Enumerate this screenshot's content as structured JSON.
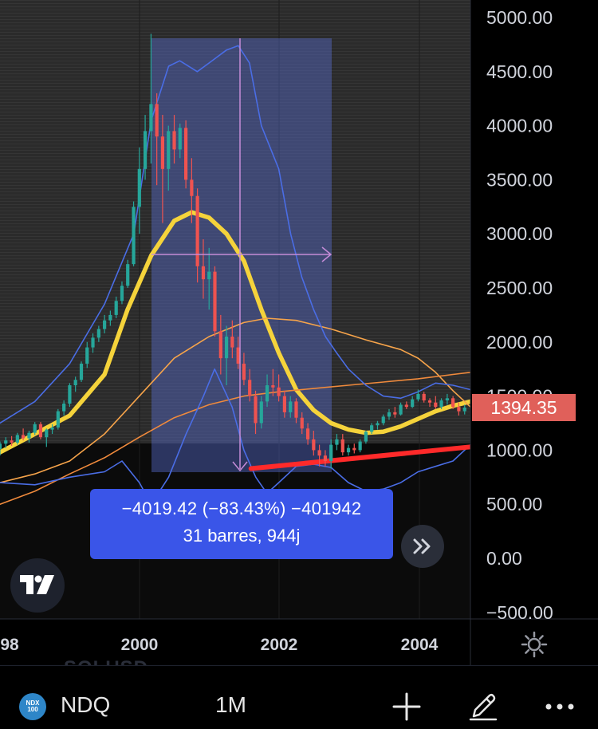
{
  "symbol": {
    "name": "NDQ",
    "badge_line1": "NDX",
    "badge_line2": "100"
  },
  "interval": "1M",
  "faded_label": "SOLUSD",
  "last_price_label": "1394.35",
  "measure": {
    "line1": "−4019.42 (−83.43%) −401942",
    "line2": "31 barres, 944j"
  },
  "colors": {
    "up": "#26a69a",
    "down": "#ef5350",
    "ma_yellow": "#f5d33b",
    "ma_orange": "#f7a44a",
    "ma_orange_dark": "#f08a3c",
    "bollinger": "#4a6de5",
    "support": "#ff2a2a",
    "measure_box": "#3a55e8",
    "price_tag": "#e0605a"
  },
  "icons": [
    "tradingview-logo-icon",
    "fast-forward-icon",
    "gear-icon",
    "plus-icon",
    "pen-icon",
    "more-icon"
  ],
  "chart_data": {
    "type": "candlestick",
    "y_ticks": [
      "5000.00",
      "4500.00",
      "4000.00",
      "3500.00",
      "3000.00",
      "2500.00",
      "2000.00",
      "1500.00",
      "1000.00",
      "500.00",
      "0.00",
      "−500.00"
    ],
    "x_ticks": [
      "98",
      "2000",
      "2002",
      "2004"
    ],
    "ylim": [
      -500,
      5000
    ],
    "xlim": [
      1998.0,
      2004.75
    ],
    "candles": [
      [
        1998.0,
        1010,
        1080,
        950,
        1060
      ],
      [
        1998.083,
        1060,
        1120,
        1020,
        1090
      ],
      [
        1998.167,
        1090,
        1130,
        1040,
        1070
      ],
      [
        1998.25,
        1070,
        1160,
        1050,
        1140
      ],
      [
        1998.333,
        1140,
        1200,
        1090,
        1110
      ],
      [
        1998.417,
        1110,
        1180,
        1070,
        1160
      ],
      [
        1998.5,
        1160,
        1260,
        1140,
        1240
      ],
      [
        1998.583,
        1240,
        1260,
        1100,
        1120
      ],
      [
        1998.667,
        1120,
        1200,
        1030,
        1190
      ],
      [
        1998.75,
        1190,
        1240,
        1150,
        1210
      ],
      [
        1998.833,
        1210,
        1380,
        1190,
        1360
      ],
      [
        1998.917,
        1360,
        1460,
        1320,
        1430
      ],
      [
        1999.0,
        1430,
        1620,
        1400,
        1600
      ],
      [
        1999.083,
        1600,
        1680,
        1540,
        1650
      ],
      [
        1999.167,
        1650,
        1820,
        1630,
        1800
      ],
      [
        1999.25,
        1800,
        2000,
        1760,
        1950
      ],
      [
        1999.333,
        1950,
        2080,
        1900,
        2040
      ],
      [
        1999.417,
        2040,
        2150,
        2000,
        2120
      ],
      [
        1999.5,
        2120,
        2250,
        2080,
        2200
      ],
      [
        1999.583,
        2200,
        2290,
        2150,
        2250
      ],
      [
        1999.667,
        2250,
        2420,
        2220,
        2380
      ],
      [
        1999.75,
        2380,
        2560,
        2350,
        2520
      ],
      [
        1999.833,
        2520,
        2760,
        2500,
        2720
      ],
      [
        1999.917,
        2720,
        3300,
        2700,
        3250
      ],
      [
        2000.0,
        3250,
        3800,
        3000,
        3600
      ],
      [
        2000.083,
        3600,
        4100,
        3500,
        3950
      ],
      [
        2000.167,
        3950,
        4850,
        3650,
        4200
      ],
      [
        2000.25,
        4200,
        4300,
        3450,
        3900
      ],
      [
        2000.333,
        3900,
        4100,
        3100,
        3600
      ],
      [
        2000.417,
        3600,
        4000,
        3400,
        3950
      ],
      [
        2000.5,
        3950,
        4100,
        3650,
        3780
      ],
      [
        2000.583,
        3780,
        4020,
        3700,
        3980
      ],
      [
        2000.667,
        3980,
        4050,
        3420,
        3500
      ],
      [
        2000.75,
        3500,
        3700,
        3100,
        3350
      ],
      [
        2000.833,
        3350,
        3420,
        2550,
        2700
      ],
      [
        2000.917,
        2700,
        2950,
        2400,
        2580
      ],
      [
        2001.0,
        2580,
        2870,
        2300,
        2650
      ],
      [
        2001.083,
        2650,
        2700,
        2050,
        2100
      ],
      [
        2001.167,
        2100,
        2250,
        1700,
        1850
      ],
      [
        2001.25,
        1850,
        2150,
        1600,
        2050
      ],
      [
        2001.333,
        2050,
        2200,
        1850,
        1950
      ],
      [
        2001.417,
        1950,
        2050,
        1750,
        1800
      ],
      [
        2001.5,
        1800,
        1900,
        1600,
        1650
      ],
      [
        2001.583,
        1650,
        1750,
        1450,
        1500
      ],
      [
        2001.667,
        1500,
        1550,
        1150,
        1250
      ],
      [
        2001.75,
        1250,
        1500,
        1200,
        1450
      ],
      [
        2001.833,
        1450,
        1700,
        1400,
        1600
      ],
      [
        2001.917,
        1600,
        1750,
        1500,
        1580
      ],
      [
        2002.0,
        1580,
        1700,
        1450,
        1500
      ],
      [
        2002.083,
        1500,
        1550,
        1300,
        1350
      ],
      [
        2002.167,
        1350,
        1500,
        1300,
        1450
      ],
      [
        2002.25,
        1450,
        1480,
        1250,
        1300
      ],
      [
        2002.333,
        1300,
        1350,
        1150,
        1200
      ],
      [
        2002.417,
        1200,
        1250,
        1050,
        1100
      ],
      [
        2002.5,
        1100,
        1180,
        950,
        1000
      ],
      [
        2002.583,
        1000,
        1050,
        850,
        950
      ],
      [
        2002.667,
        950,
        1000,
        850,
        900
      ],
      [
        2002.75,
        900,
        1100,
        830,
        1050
      ],
      [
        2002.833,
        1050,
        1150,
        1000,
        1100
      ],
      [
        2002.917,
        1100,
        1150,
        950,
        980
      ],
      [
        2003.0,
        980,
        1050,
        950,
        1020
      ],
      [
        2003.083,
        1020,
        1060,
        970,
        1000
      ],
      [
        2003.167,
        1000,
        1100,
        980,
        1080
      ],
      [
        2003.25,
        1080,
        1180,
        1060,
        1170
      ],
      [
        2003.333,
        1170,
        1250,
        1150,
        1230
      ],
      [
        2003.417,
        1230,
        1270,
        1190,
        1250
      ],
      [
        2003.5,
        1250,
        1330,
        1230,
        1310
      ],
      [
        2003.583,
        1310,
        1380,
        1280,
        1350
      ],
      [
        2003.667,
        1350,
        1400,
        1300,
        1330
      ],
      [
        2003.75,
        1330,
        1440,
        1320,
        1420
      ],
      [
        2003.833,
        1420,
        1450,
        1380,
        1400
      ],
      [
        2003.917,
        1400,
        1500,
        1390,
        1470
      ],
      [
        2004.0,
        1470,
        1560,
        1450,
        1520
      ],
      [
        2004.083,
        1520,
        1540,
        1440,
        1460
      ],
      [
        2004.167,
        1460,
        1480,
        1400,
        1440
      ],
      [
        2004.25,
        1440,
        1500,
        1380,
        1400
      ],
      [
        2004.333,
        1400,
        1480,
        1380,
        1460
      ],
      [
        2004.417,
        1460,
        1520,
        1420,
        1480
      ],
      [
        2004.5,
        1480,
        1500,
        1380,
        1400
      ],
      [
        2004.583,
        1400,
        1440,
        1320,
        1360
      ],
      [
        2004.667,
        1360,
        1420,
        1330,
        1394
      ]
    ],
    "series": [
      {
        "style": "yellow-thick",
        "points": [
          [
            1998.0,
            980
          ],
          [
            1998.5,
            1150
          ],
          [
            1999.0,
            1320
          ],
          [
            1999.5,
            1700
          ],
          [
            1999.83,
            2300
          ],
          [
            2000.17,
            2800
          ],
          [
            2000.5,
            3120
          ],
          [
            2000.75,
            3200
          ],
          [
            2001.0,
            3150
          ],
          [
            2001.25,
            3000
          ],
          [
            2001.5,
            2750
          ],
          [
            2001.75,
            2300
          ],
          [
            2002.0,
            1900
          ],
          [
            2002.25,
            1560
          ],
          [
            2002.5,
            1370
          ],
          [
            2002.75,
            1250
          ],
          [
            2003.0,
            1190
          ],
          [
            2003.25,
            1160
          ],
          [
            2003.5,
            1170
          ],
          [
            2003.75,
            1220
          ],
          [
            2004.0,
            1290
          ],
          [
            2004.25,
            1360
          ],
          [
            2004.5,
            1410
          ],
          [
            2004.75,
            1450
          ]
        ]
      },
      {
        "style": "orange",
        "points": [
          [
            1998.0,
            700
          ],
          [
            1998.5,
            780
          ],
          [
            1999.0,
            900
          ],
          [
            1999.5,
            1150
          ],
          [
            2000.0,
            1500
          ],
          [
            2000.5,
            1850
          ],
          [
            2001.0,
            2050
          ],
          [
            2001.5,
            2180
          ],
          [
            2001.83,
            2220
          ],
          [
            2002.25,
            2200
          ],
          [
            2002.75,
            2120
          ],
          [
            2003.25,
            2020
          ],
          [
            2003.75,
            1930
          ],
          [
            2004.0,
            1850
          ],
          [
            2004.25,
            1720
          ],
          [
            2004.5,
            1550
          ],
          [
            2004.75,
            1400
          ]
        ]
      },
      {
        "style": "orange-dark",
        "points": [
          [
            1998.0,
            500
          ],
          [
            1998.5,
            620
          ],
          [
            1999.0,
            780
          ],
          [
            1999.5,
            930
          ],
          [
            2000.0,
            1120
          ],
          [
            2000.5,
            1300
          ],
          [
            2001.0,
            1420
          ],
          [
            2001.5,
            1500
          ],
          [
            2002.0,
            1540
          ],
          [
            2002.5,
            1570
          ],
          [
            2003.0,
            1600
          ],
          [
            2003.5,
            1630
          ],
          [
            2004.0,
            1660
          ],
          [
            2004.5,
            1700
          ],
          [
            2004.75,
            1720
          ]
        ]
      },
      {
        "style": "bollinger-upper",
        "points": [
          [
            1998.0,
            1250
          ],
          [
            1998.5,
            1450
          ],
          [
            1999.0,
            1800
          ],
          [
            1999.5,
            2350
          ],
          [
            1999.92,
            3000
          ],
          [
            2000.17,
            4050
          ],
          [
            2000.42,
            4550
          ],
          [
            2000.58,
            4600
          ],
          [
            2000.83,
            4500
          ],
          [
            2001.0,
            4580
          ],
          [
            2001.25,
            4700
          ],
          [
            2001.42,
            4740
          ],
          [
            2001.58,
            4580
          ],
          [
            2001.75,
            4000
          ],
          [
            2002.0,
            3600
          ],
          [
            2002.17,
            3000
          ],
          [
            2002.33,
            2600
          ],
          [
            2002.5,
            2300
          ],
          [
            2002.67,
            2050
          ],
          [
            2002.83,
            1900
          ],
          [
            2003.0,
            1750
          ],
          [
            2003.25,
            1600
          ],
          [
            2003.5,
            1500
          ],
          [
            2003.75,
            1480
          ],
          [
            2004.0,
            1540
          ],
          [
            2004.25,
            1620
          ],
          [
            2004.5,
            1600
          ],
          [
            2004.75,
            1560
          ]
        ]
      },
      {
        "style": "bollinger-lower",
        "points": [
          [
            1998.0,
            700
          ],
          [
            1998.5,
            680
          ],
          [
            1999.0,
            750
          ],
          [
            1999.5,
            800
          ],
          [
            1999.75,
            900
          ],
          [
            2000.0,
            700
          ],
          [
            2000.17,
            500
          ],
          [
            2000.42,
            750
          ],
          [
            2000.67,
            1150
          ],
          [
            2000.92,
            1500
          ],
          [
            2001.08,
            1750
          ],
          [
            2001.33,
            1400
          ],
          [
            2001.5,
            1000
          ],
          [
            2001.67,
            750
          ],
          [
            2001.83,
            600
          ],
          [
            2002.0,
            700
          ],
          [
            2002.25,
            850
          ],
          [
            2002.5,
            870
          ],
          [
            2002.75,
            840
          ],
          [
            2003.0,
            700
          ],
          [
            2003.25,
            620
          ],
          [
            2003.5,
            640
          ],
          [
            2003.75,
            700
          ],
          [
            2004.0,
            800
          ],
          [
            2004.25,
            850
          ],
          [
            2004.5,
            900
          ],
          [
            2004.75,
            1050
          ]
        ]
      },
      {
        "style": "support-red",
        "points": [
          [
            2001.6,
            830
          ],
          [
            2004.75,
            1030
          ]
        ]
      }
    ]
  }
}
